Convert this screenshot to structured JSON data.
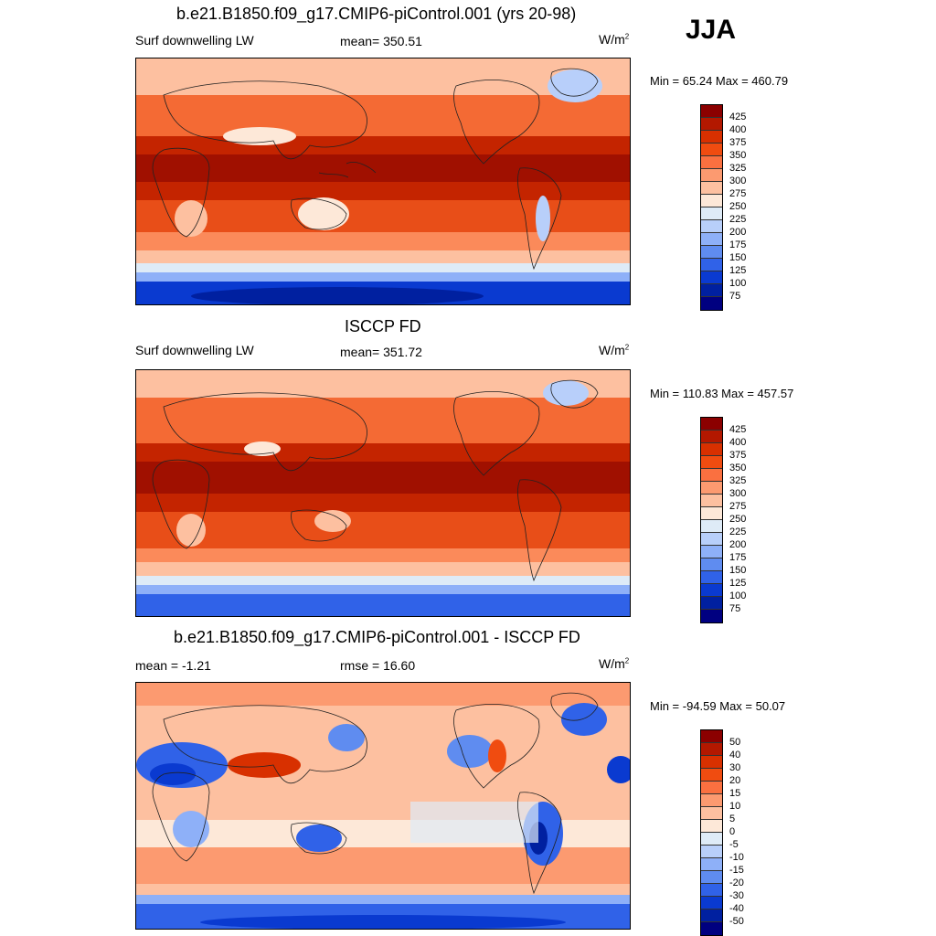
{
  "season": "JJA",
  "panels": [
    {
      "title": "b.e21.B1850.f09_g17.CMIP6-piControl.001 (yrs 20-98)",
      "left": "Surf downwelling LW",
      "center": "mean= 350.51",
      "units": "W/m",
      "units_sup": "2",
      "minmax": "Min =  65.24 Max = 460.79",
      "colorbar": {
        "labels": [
          "425",
          "400",
          "375",
          "350",
          "325",
          "300",
          "275",
          "250",
          "225",
          "200",
          "175",
          "150",
          "125",
          "100",
          "75"
        ],
        "colors": [
          "#8b0000",
          "#b31800",
          "#d83000",
          "#f04c10",
          "#fa7040",
          "#fc9a70",
          "#fdc0a0",
          "#fde8d8",
          "#deebf7",
          "#b8cffa",
          "#8eb0f8",
          "#5f8cf0",
          "#3062e8",
          "#0a3ad0",
          "#0020a0",
          "#000080"
        ]
      }
    },
    {
      "title": "ISCCP FD",
      "left": "Surf downwelling LW",
      "center": "mean= 351.72",
      "units": "W/m",
      "units_sup": "2",
      "minmax": "Min = 110.83 Max = 457.57",
      "colorbar": {
        "labels": [
          "425",
          "400",
          "375",
          "350",
          "325",
          "300",
          "275",
          "250",
          "225",
          "200",
          "175",
          "150",
          "125",
          "100",
          "75"
        ],
        "colors": [
          "#8b0000",
          "#b31800",
          "#d83000",
          "#f04c10",
          "#fa7040",
          "#fc9a70",
          "#fdc0a0",
          "#fde8d8",
          "#deebf7",
          "#b8cffa",
          "#8eb0f8",
          "#5f8cf0",
          "#3062e8",
          "#0a3ad0",
          "#0020a0",
          "#000080"
        ]
      }
    },
    {
      "title": "b.e21.B1850.f09_g17.CMIP6-piControl.001 - ISCCP FD",
      "left": "mean =  -1.21",
      "center": "rmse =  16.60",
      "units": "W/m",
      "units_sup": "2",
      "minmax": "Min = -94.59 Max =  50.07",
      "colorbar": {
        "labels": [
          "50",
          "40",
          "30",
          "20",
          "15",
          "10",
          "5",
          "0",
          "-5",
          "-10",
          "-15",
          "-20",
          "-30",
          "-40",
          "-50"
        ],
        "colors": [
          "#8b0000",
          "#b31800",
          "#d83000",
          "#f04c10",
          "#fa7040",
          "#fc9a70",
          "#fdc0a0",
          "#fde8d8",
          "#deebf7",
          "#b8cffa",
          "#8eb0f8",
          "#5f8cf0",
          "#3062e8",
          "#0a3ad0",
          "#0020a0",
          "#000080"
        ]
      }
    }
  ]
}
